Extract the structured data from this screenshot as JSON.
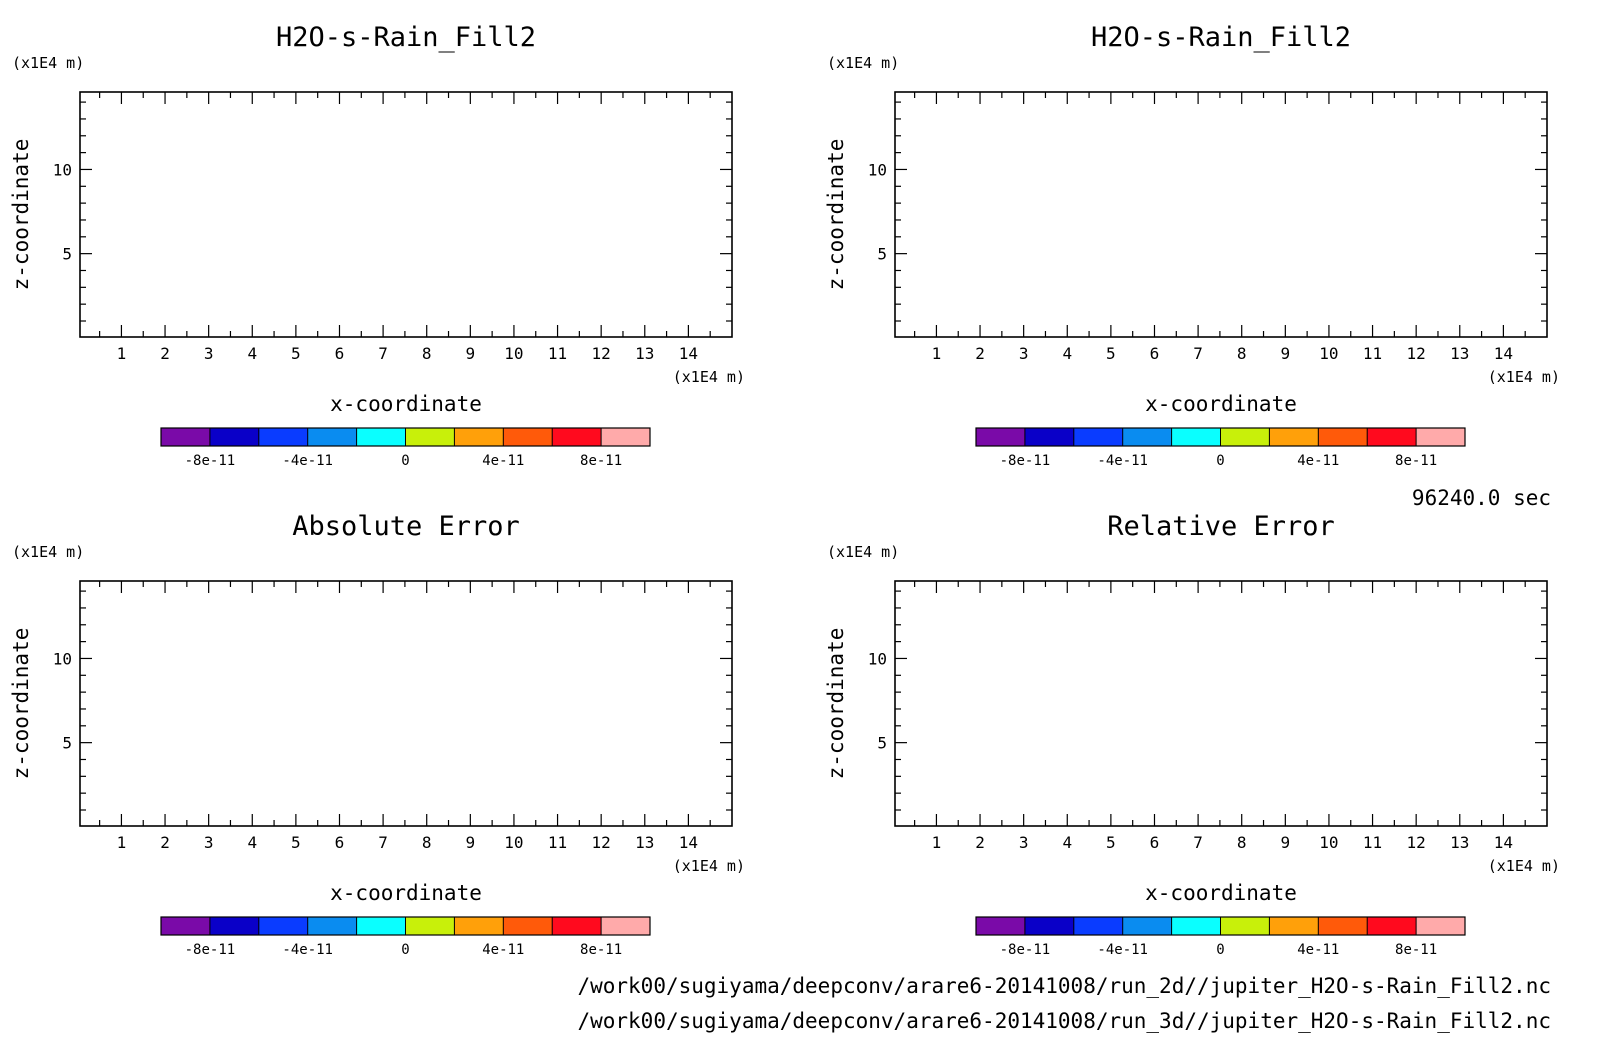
{
  "figure": {
    "timestamp": "96240.0 sec",
    "file_paths": [
      "/work00/sugiyama/deepconv/arare6-20141008/run_2d//jupiter_H2O-s-Rain_Fill2.nc",
      "/work00/sugiyama/deepconv/arare6-20141008/run_3d//jupiter_H2O-s-Rain_Fill2.nc"
    ]
  },
  "chart_data": [
    {
      "type": "heatmap",
      "title": "H2O-s-Rain_Fill2",
      "xlabel": "x-coordinate",
      "ylabel": "z-coordinate",
      "x_unit": "(x1E4 m)",
      "y_unit": "(x1E4 m)",
      "xlim": [
        0.05,
        15.0
      ],
      "ylim": [
        0.05,
        14.6
      ],
      "xticks": [
        1,
        2,
        3,
        4,
        5,
        6,
        7,
        8,
        9,
        10,
        11,
        12,
        13,
        14
      ],
      "yticks": [
        5,
        10
      ],
      "values": [],
      "colorbar": {
        "levels": [
          -1e-10,
          -8e-11,
          -6e-11,
          -4e-11,
          -2e-11,
          0,
          2e-11,
          4e-11,
          6e-11,
          8e-11,
          1e-10
        ],
        "colors": [
          "#7a0aa8",
          "#0a00c8",
          "#0a3cff",
          "#0a8cf0",
          "#0affff",
          "#c8f00a",
          "#ffa00a",
          "#ff5a0a",
          "#ff0a1e",
          "#ffaaaa"
        ],
        "tick_values": [
          -8e-11,
          -4e-11,
          0,
          4e-11,
          8e-11
        ],
        "tick_labels": [
          "-8e-11",
          "-4e-11",
          "0",
          "4e-11",
          "8e-11"
        ]
      }
    },
    {
      "type": "heatmap",
      "title": "H2O-s-Rain_Fill2",
      "xlabel": "x-coordinate",
      "ylabel": "z-coordinate",
      "x_unit": "(x1E4 m)",
      "y_unit": "(x1E4 m)",
      "xlim": [
        0.05,
        15.0
      ],
      "ylim": [
        0.05,
        14.6
      ],
      "xticks": [
        1,
        2,
        3,
        4,
        5,
        6,
        7,
        8,
        9,
        10,
        11,
        12,
        13,
        14
      ],
      "yticks": [
        5,
        10
      ],
      "values": [],
      "colorbar": {
        "levels": [
          -1e-10,
          -8e-11,
          -6e-11,
          -4e-11,
          -2e-11,
          0,
          2e-11,
          4e-11,
          6e-11,
          8e-11,
          1e-10
        ],
        "colors": [
          "#7a0aa8",
          "#0a00c8",
          "#0a3cff",
          "#0a8cf0",
          "#0affff",
          "#c8f00a",
          "#ffa00a",
          "#ff5a0a",
          "#ff0a1e",
          "#ffaaaa"
        ],
        "tick_values": [
          -8e-11,
          -4e-11,
          0,
          4e-11,
          8e-11
        ],
        "tick_labels": [
          "-8e-11",
          "-4e-11",
          "0",
          "4e-11",
          "8e-11"
        ]
      }
    },
    {
      "type": "heatmap",
      "title": "Absolute Error",
      "xlabel": "x-coordinate",
      "ylabel": "z-coordinate",
      "x_unit": "(x1E4 m)",
      "y_unit": "(x1E4 m)",
      "xlim": [
        0.05,
        15.0
      ],
      "ylim": [
        0.05,
        14.6
      ],
      "xticks": [
        1,
        2,
        3,
        4,
        5,
        6,
        7,
        8,
        9,
        10,
        11,
        12,
        13,
        14
      ],
      "yticks": [
        5,
        10
      ],
      "values": [],
      "colorbar": {
        "levels": [
          -1e-10,
          -8e-11,
          -6e-11,
          -4e-11,
          -2e-11,
          0,
          2e-11,
          4e-11,
          6e-11,
          8e-11,
          1e-10
        ],
        "colors": [
          "#7a0aa8",
          "#0a00c8",
          "#0a3cff",
          "#0a8cf0",
          "#0affff",
          "#c8f00a",
          "#ffa00a",
          "#ff5a0a",
          "#ff0a1e",
          "#ffaaaa"
        ],
        "tick_values": [
          -8e-11,
          -4e-11,
          0,
          4e-11,
          8e-11
        ],
        "tick_labels": [
          "-8e-11",
          "-4e-11",
          "0",
          "4e-11",
          "8e-11"
        ]
      }
    },
    {
      "type": "heatmap",
      "title": "Relative Error",
      "xlabel": "x-coordinate",
      "ylabel": "z-coordinate",
      "x_unit": "(x1E4 m)",
      "y_unit": "(x1E4 m)",
      "xlim": [
        0.05,
        15.0
      ],
      "ylim": [
        0.05,
        14.6
      ],
      "xticks": [
        1,
        2,
        3,
        4,
        5,
        6,
        7,
        8,
        9,
        10,
        11,
        12,
        13,
        14
      ],
      "yticks": [
        5,
        10
      ],
      "values": [],
      "colorbar": {
        "levels": [
          -1e-10,
          -8e-11,
          -6e-11,
          -4e-11,
          -2e-11,
          0,
          2e-11,
          4e-11,
          6e-11,
          8e-11,
          1e-10
        ],
        "colors": [
          "#7a0aa8",
          "#0a00c8",
          "#0a3cff",
          "#0a8cf0",
          "#0affff",
          "#c8f00a",
          "#ffa00a",
          "#ff5a0a",
          "#ff0a1e",
          "#ffaaaa"
        ],
        "tick_values": [
          -8e-11,
          -4e-11,
          0,
          4e-11,
          8e-11
        ],
        "tick_labels": [
          "-8e-11",
          "-4e-11",
          "0",
          "4e-11",
          "8e-11"
        ]
      }
    }
  ]
}
